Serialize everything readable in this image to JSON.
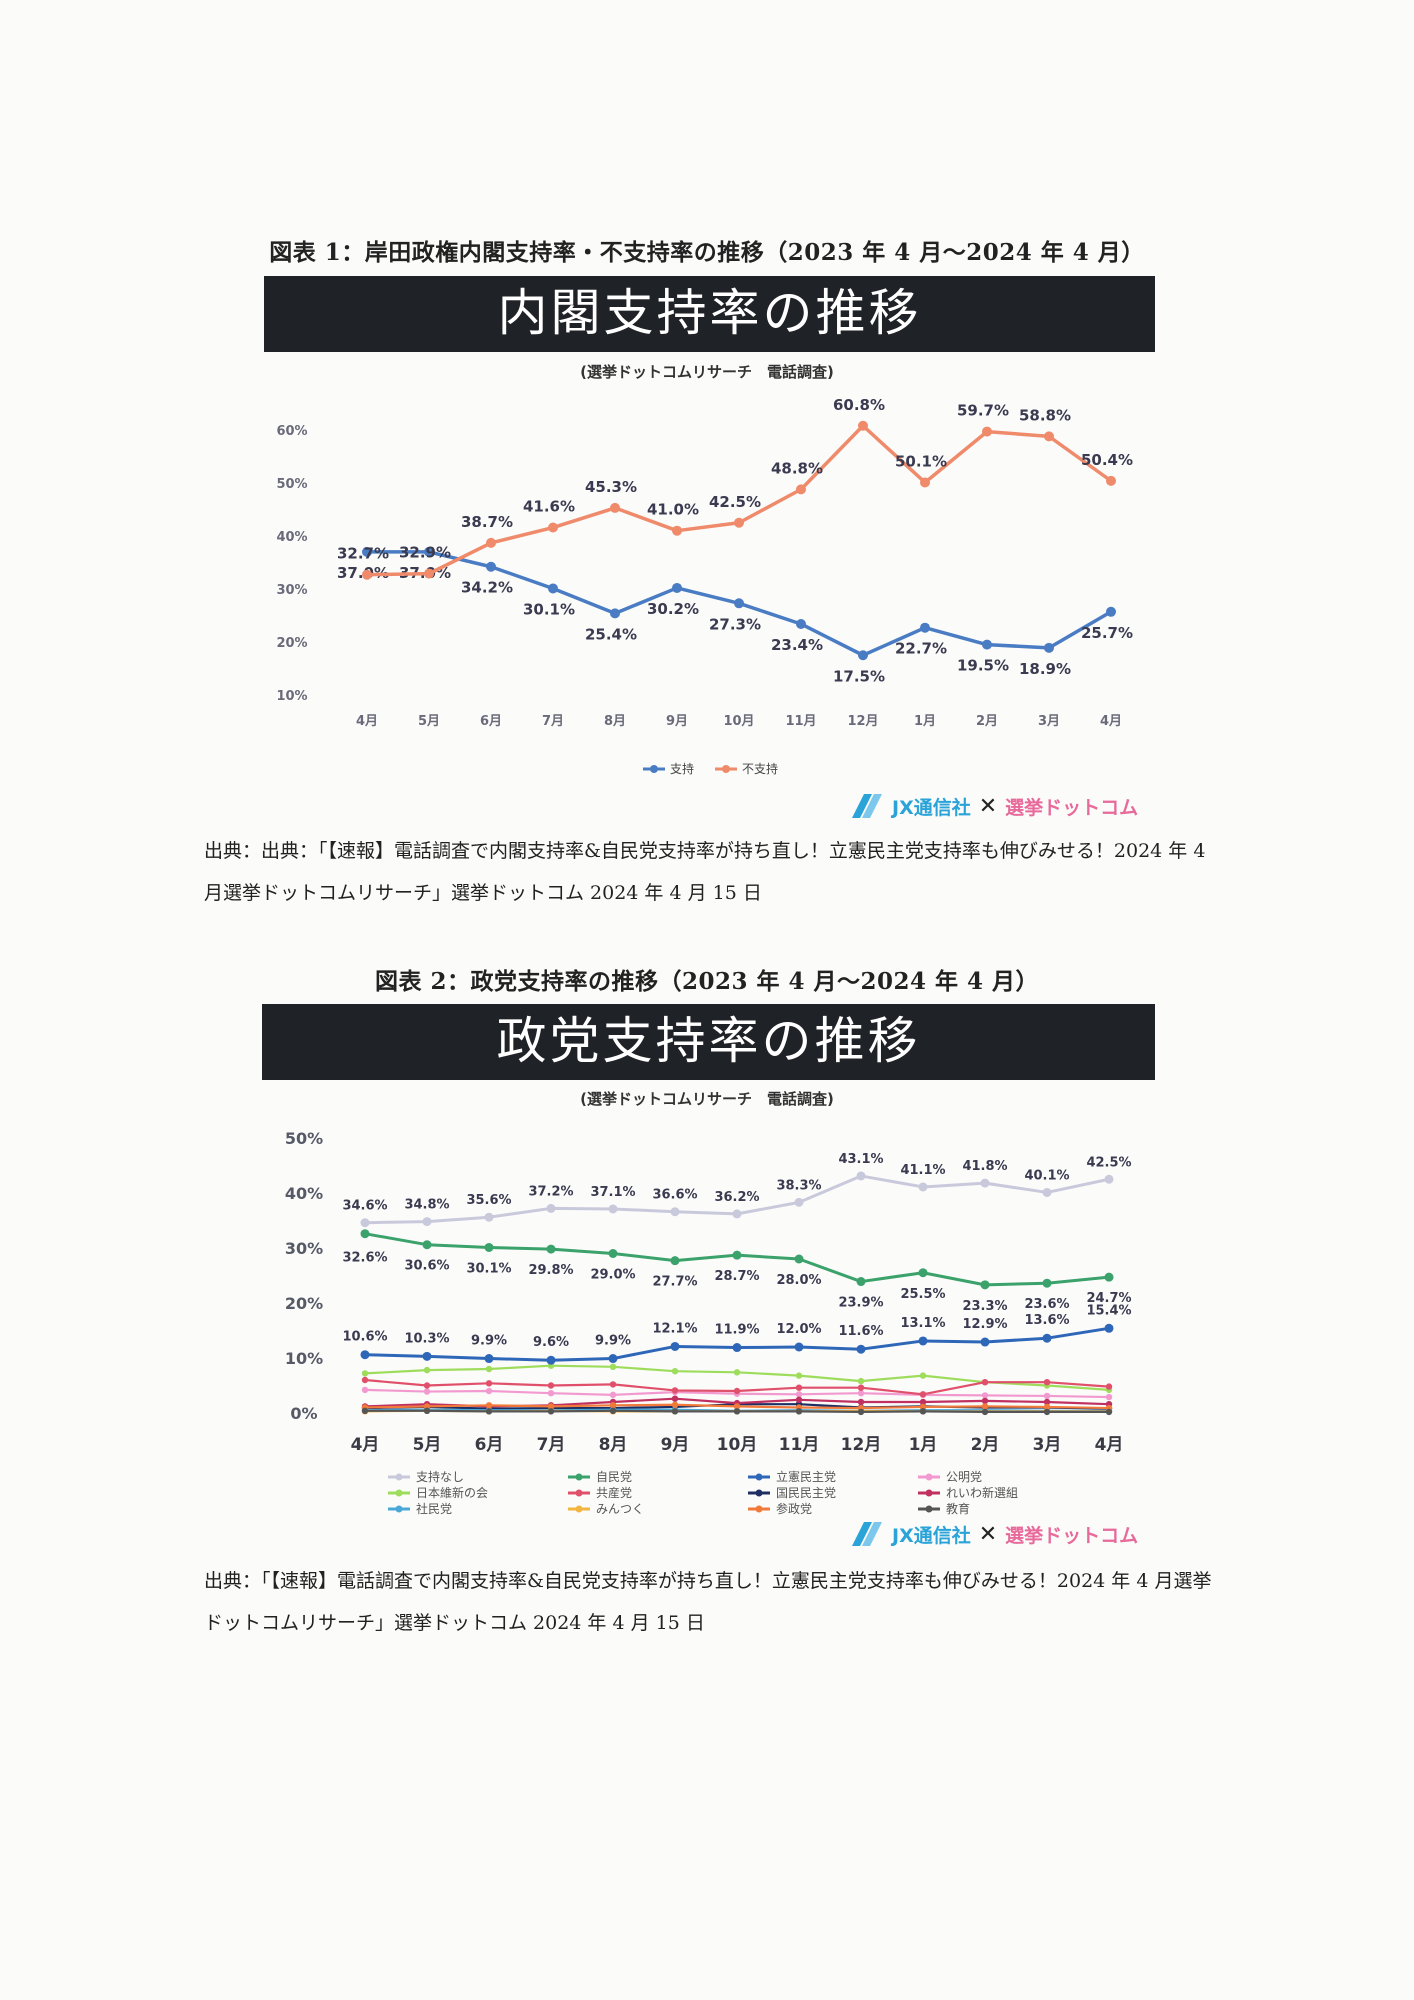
{
  "figure1": {
    "title": "図表 1：岸田政権内閣支持率・不支持率の推移（2023 年 4 月～2024 年 4 月）",
    "banner": "内閣支持率の推移",
    "survey": "(選挙ドットコムリサーチ　電話調査)",
    "logo": {
      "jx": "JX通信社",
      "x": "✕",
      "sdc": "選挙ドットコム"
    },
    "source": "出典：出典：「【速報】電話調査で内閣支持率&自民党支持率が持ち直し！立憲民主党支持率も伸びみせる！2024 年 4 月選挙ドットコムリサーチ」選挙ドットコム 2024 年 4 月 15 日"
  },
  "figure2": {
    "title": "図表 2：政党支持率の推移（2023 年 4 月～2024 年 4 月）",
    "banner": "政党支持率の推移",
    "survey": "(選挙ドットコムリサーチ　電話調査)",
    "logo": {
      "jx": "JX通信社",
      "x": "✕",
      "sdc": "選挙ドットコム"
    },
    "source": "出典：「【速報】電話調査で内閣支持率&自民党支持率が持ち直し！立憲民主党支持率も伸びみせる！2024 年 4 月選挙ドットコムリサーチ」選挙ドットコム 2024 年 4 月 15 日"
  },
  "chart_data": [
    {
      "type": "line",
      "title": "内閣支持率の推移",
      "categories": [
        "4月",
        "5月",
        "6月",
        "7月",
        "8月",
        "9月",
        "10月",
        "11月",
        "12月",
        "1月",
        "2月",
        "3月",
        "4月"
      ],
      "ylim": [
        10,
        60
      ],
      "yticks": [
        "10%",
        "20%",
        "30%",
        "40%",
        "50%",
        "60%"
      ],
      "legend_position": "bottom",
      "series": [
        {
          "name": "支持",
          "color": "#4a7cc4",
          "labels_below": true,
          "values": [
            37.0,
            37.0,
            34.2,
            30.1,
            25.4,
            30.2,
            27.3,
            23.4,
            17.5,
            22.7,
            19.5,
            18.9,
            25.7
          ],
          "labels": [
            "37.0%",
            "37.0%",
            "34.2%",
            "30.1%",
            "25.4%",
            "30.2%",
            "27.3%",
            "23.4%",
            "17.5%",
            "22.7%",
            "19.5%",
            "18.9%",
            "25.7%"
          ]
        },
        {
          "name": "不支持",
          "color": "#ef8a6a",
          "labels_below": false,
          "values": [
            32.7,
            32.9,
            38.7,
            41.6,
            45.3,
            41.0,
            42.5,
            48.8,
            60.8,
            50.1,
            59.7,
            58.8,
            50.4
          ],
          "labels": [
            "32.7%",
            "32.9%",
            "38.7%",
            "41.6%",
            "45.3%",
            "41.0%",
            "42.5%",
            "48.8%",
            "60.8%",
            "50.1%",
            "59.7%",
            "58.8%",
            "50.4%"
          ]
        }
      ]
    },
    {
      "type": "line",
      "title": "政党支持率の推移",
      "categories": [
        "4月",
        "5月",
        "6月",
        "7月",
        "8月",
        "9月",
        "10月",
        "11月",
        "12月",
        "1月",
        "2月",
        "3月",
        "4月"
      ],
      "ylim": [
        0,
        50
      ],
      "yticks": [
        "0%",
        "10%",
        "20%",
        "30%",
        "40%",
        "50%"
      ],
      "legend_position": "bottom",
      "series": [
        {
          "name": "支持なし",
          "color": "#c9c9dc",
          "values": [
            34.6,
            34.8,
            35.6,
            37.2,
            37.1,
            36.6,
            36.2,
            38.3,
            43.1,
            41.1,
            41.8,
            40.1,
            42.5
          ],
          "labels": [
            "34.6%",
            "34.8%",
            "35.6%",
            "37.2%",
            "37.1%",
            "36.6%",
            "36.2%",
            "38.3%",
            "43.1%",
            "41.1%",
            "41.8%",
            "40.1%",
            "42.5%"
          ]
        },
        {
          "name": "自民党",
          "color": "#3aa26a",
          "values": [
            32.6,
            30.6,
            30.1,
            29.8,
            29.0,
            27.7,
            28.7,
            28.0,
            23.9,
            25.5,
            23.3,
            23.6,
            24.7
          ],
          "labels": [
            "32.6%",
            "30.6%",
            "30.1%",
            "29.8%",
            "29.0%",
            "27.7%",
            "28.7%",
            "28.0%",
            "23.9%",
            "25.5%",
            "23.3%",
            "23.6%",
            "24.7%"
          ]
        },
        {
          "name": "立憲民主党",
          "color": "#2f67b8",
          "values": [
            10.6,
            10.3,
            9.9,
            9.6,
            9.9,
            12.1,
            11.9,
            12.0,
            11.6,
            13.1,
            12.9,
            13.6,
            15.4
          ],
          "labels": [
            "10.6%",
            "10.3%",
            "9.9%",
            "9.6%",
            "9.9%",
            "12.1%",
            "11.9%",
            "12.0%",
            "11.6%",
            "13.1%",
            "12.9%",
            "13.6%",
            "15.4%"
          ]
        },
        {
          "name": "公明党",
          "color": "#f29ad0",
          "values": [
            4.2,
            3.9,
            4.0,
            3.6,
            3.3,
            3.8,
            3.5,
            3.4,
            3.6,
            3.3,
            3.2,
            3.1,
            2.9
          ]
        },
        {
          "name": "日本維新の会",
          "color": "#9edc5c",
          "values": [
            7.2,
            7.8,
            8.0,
            8.6,
            8.4,
            7.6,
            7.4,
            6.8,
            5.8,
            6.8,
            5.6,
            5.0,
            4.2
          ]
        },
        {
          "name": "共産党",
          "color": "#e0506a",
          "values": [
            6.0,
            5.0,
            5.4,
            5.0,
            5.2,
            4.1,
            4.0,
            4.6,
            4.6,
            3.4,
            5.6,
            5.6,
            4.8
          ]
        },
        {
          "name": "国民民主党",
          "color": "#1e2e62",
          "values": [
            0.9,
            1.1,
            0.8,
            0.9,
            0.9,
            1.1,
            1.6,
            1.6,
            1.0,
            1.2,
            1.0,
            1.0,
            0.8
          ]
        },
        {
          "name": "れいわ新選組",
          "color": "#c03060",
          "values": [
            1.2,
            1.6,
            1.2,
            1.4,
            2.0,
            2.6,
            1.8,
            2.4,
            2.0,
            2.0,
            2.2,
            2.0,
            1.6
          ]
        },
        {
          "name": "社民党",
          "color": "#4aa8d8",
          "values": [
            0.5,
            0.6,
            0.5,
            0.5,
            0.6,
            0.6,
            0.4,
            0.5,
            0.4,
            0.5,
            0.5,
            0.4,
            0.4
          ]
        },
        {
          "name": "みんつく",
          "color": "#f2b640",
          "values": [
            0.3,
            0.4,
            0.3,
            0.4,
            0.3,
            0.3,
            0.3,
            0.3,
            0.4,
            0.3,
            0.3,
            0.3,
            0.3
          ]
        },
        {
          "name": "参政党",
          "color": "#f07a3a",
          "values": [
            1.0,
            1.2,
            1.4,
            1.2,
            1.4,
            1.5,
            1.2,
            1.0,
            0.9,
            1.1,
            1.2,
            1.1,
            0.9
          ]
        },
        {
          "name": "教育",
          "color": "#555555",
          "values": [
            0.4,
            0.4,
            0.3,
            0.3,
            0.4,
            0.3,
            0.3,
            0.3,
            0.2,
            0.3,
            0.2,
            0.2,
            0.2
          ]
        }
      ]
    }
  ]
}
